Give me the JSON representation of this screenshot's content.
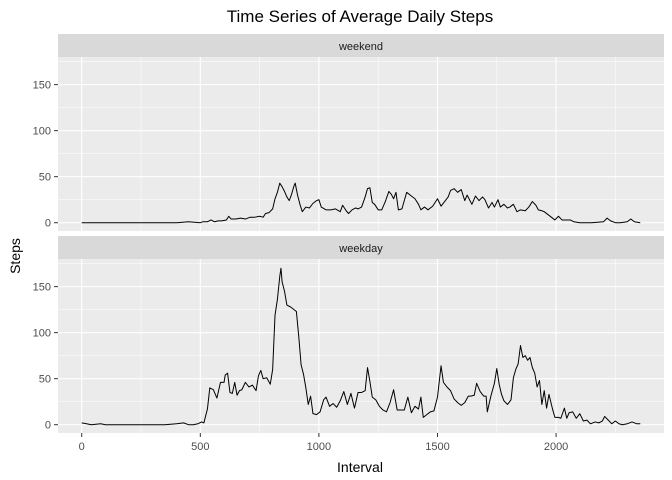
{
  "chart_data": {
    "type": "line",
    "title": "Time Series of Average Daily Steps",
    "xlabel": "Interval",
    "ylabel": "Steps",
    "xlim": [
      -100,
      2455
    ],
    "ylim": [
      -9,
      180
    ],
    "x_ticks": [
      0,
      500,
      1000,
      1500,
      2000
    ],
    "y_ticks": [
      0,
      50,
      100,
      150
    ],
    "x_tick_labels": [
      "0",
      "500",
      "1000",
      "1500",
      "2000"
    ],
    "y_tick_labels": [
      "0",
      "50",
      "100",
      "150"
    ],
    "line_color": "#000000",
    "panels": [
      {
        "name": "weekend",
        "series": [
          [
            0,
            0
          ],
          [
            100,
            0
          ],
          [
            200,
            0
          ],
          [
            300,
            0
          ],
          [
            400,
            0
          ],
          [
            450,
            1
          ],
          [
            500,
            0
          ],
          [
            510,
            1
          ],
          [
            530,
            1
          ],
          [
            545,
            3
          ],
          [
            560,
            1
          ],
          [
            575,
            2
          ],
          [
            590,
            2
          ],
          [
            610,
            3
          ],
          [
            620,
            7
          ],
          [
            630,
            4
          ],
          [
            650,
            4
          ],
          [
            670,
            5
          ],
          [
            690,
            4
          ],
          [
            710,
            6
          ],
          [
            730,
            6
          ],
          [
            750,
            7
          ],
          [
            765,
            6
          ],
          [
            775,
            10
          ],
          [
            790,
            11
          ],
          [
            805,
            15
          ],
          [
            815,
            26
          ],
          [
            825,
            33
          ],
          [
            835,
            43
          ],
          [
            845,
            39
          ],
          [
            855,
            34
          ],
          [
            865,
            28
          ],
          [
            875,
            24
          ],
          [
            885,
            31
          ],
          [
            895,
            40
          ],
          [
            900,
            43
          ],
          [
            910,
            30
          ],
          [
            920,
            20
          ],
          [
            930,
            12
          ],
          [
            945,
            17
          ],
          [
            960,
            16
          ],
          [
            975,
            21
          ],
          [
            990,
            24
          ],
          [
            1000,
            25
          ],
          [
            1010,
            17
          ],
          [
            1030,
            14
          ],
          [
            1050,
            14
          ],
          [
            1070,
            15
          ],
          [
            1090,
            12
          ],
          [
            1100,
            19
          ],
          [
            1115,
            13
          ],
          [
            1125,
            10
          ],
          [
            1140,
            14
          ],
          [
            1155,
            16
          ],
          [
            1165,
            15
          ],
          [
            1180,
            17
          ],
          [
            1195,
            28
          ],
          [
            1205,
            37
          ],
          [
            1215,
            38
          ],
          [
            1225,
            22
          ],
          [
            1235,
            20
          ],
          [
            1250,
            14
          ],
          [
            1265,
            14
          ],
          [
            1280,
            23
          ],
          [
            1295,
            34
          ],
          [
            1305,
            31
          ],
          [
            1315,
            26
          ],
          [
            1325,
            33
          ],
          [
            1335,
            14
          ],
          [
            1350,
            15
          ],
          [
            1370,
            33
          ],
          [
            1385,
            30
          ],
          [
            1405,
            26
          ],
          [
            1420,
            20
          ],
          [
            1430,
            14
          ],
          [
            1445,
            17
          ],
          [
            1460,
            14
          ],
          [
            1480,
            18
          ],
          [
            1500,
            26
          ],
          [
            1515,
            18
          ],
          [
            1530,
            23
          ],
          [
            1545,
            28
          ],
          [
            1555,
            35
          ],
          [
            1570,
            37
          ],
          [
            1585,
            33
          ],
          [
            1600,
            36
          ],
          [
            1615,
            24
          ],
          [
            1625,
            30
          ],
          [
            1645,
            20
          ],
          [
            1660,
            29
          ],
          [
            1675,
            24
          ],
          [
            1690,
            28
          ],
          [
            1700,
            25
          ],
          [
            1715,
            16
          ],
          [
            1730,
            22
          ],
          [
            1740,
            17
          ],
          [
            1755,
            25
          ],
          [
            1765,
            17
          ],
          [
            1780,
            20
          ],
          [
            1795,
            16
          ],
          [
            1805,
            17
          ],
          [
            1820,
            20
          ],
          [
            1835,
            12
          ],
          [
            1850,
            14
          ],
          [
            1870,
            13
          ],
          [
            1885,
            17
          ],
          [
            1900,
            23
          ],
          [
            1915,
            19
          ],
          [
            1925,
            14
          ],
          [
            1940,
            13
          ],
          [
            1950,
            12
          ],
          [
            1965,
            9
          ],
          [
            1980,
            6
          ],
          [
            1995,
            3
          ],
          [
            2010,
            7
          ],
          [
            2025,
            3
          ],
          [
            2045,
            3
          ],
          [
            2060,
            3
          ],
          [
            2075,
            1
          ],
          [
            2100,
            0
          ],
          [
            2150,
            0
          ],
          [
            2200,
            1
          ],
          [
            2215,
            5
          ],
          [
            2230,
            2
          ],
          [
            2250,
            0
          ],
          [
            2270,
            0
          ],
          [
            2300,
            1
          ],
          [
            2315,
            4
          ],
          [
            2330,
            1
          ],
          [
            2355,
            0
          ]
        ]
      },
      {
        "name": "weekday",
        "series": [
          [
            0,
            2
          ],
          [
            20,
            1
          ],
          [
            40,
            0
          ],
          [
            80,
            1
          ],
          [
            100,
            0
          ],
          [
            150,
            0
          ],
          [
            200,
            0
          ],
          [
            250,
            0
          ],
          [
            300,
            0
          ],
          [
            350,
            0
          ],
          [
            400,
            1
          ],
          [
            430,
            2
          ],
          [
            450,
            0
          ],
          [
            470,
            0
          ],
          [
            490,
            1
          ],
          [
            505,
            3
          ],
          [
            515,
            2
          ],
          [
            530,
            17
          ],
          [
            540,
            40
          ],
          [
            555,
            38
          ],
          [
            570,
            29
          ],
          [
            585,
            46
          ],
          [
            600,
            46
          ],
          [
            605,
            54
          ],
          [
            615,
            56
          ],
          [
            625,
            35
          ],
          [
            635,
            34
          ],
          [
            645,
            46
          ],
          [
            655,
            32
          ],
          [
            665,
            37
          ],
          [
            675,
            38
          ],
          [
            690,
            46
          ],
          [
            705,
            41
          ],
          [
            720,
            43
          ],
          [
            735,
            37
          ],
          [
            745,
            53
          ],
          [
            755,
            59
          ],
          [
            765,
            50
          ],
          [
            780,
            51
          ],
          [
            795,
            44
          ],
          [
            805,
            60
          ],
          [
            815,
            119
          ],
          [
            825,
            136
          ],
          [
            835,
            161
          ],
          [
            840,
            170
          ],
          [
            845,
            155
          ],
          [
            855,
            145
          ],
          [
            865,
            130
          ],
          [
            880,
            128
          ],
          [
            895,
            125
          ],
          [
            905,
            123
          ],
          [
            915,
            96
          ],
          [
            925,
            65
          ],
          [
            935,
            55
          ],
          [
            945,
            40
          ],
          [
            955,
            22
          ],
          [
            965,
            31
          ],
          [
            975,
            12
          ],
          [
            990,
            11
          ],
          [
            1005,
            14
          ],
          [
            1020,
            27
          ],
          [
            1030,
            30
          ],
          [
            1045,
            20
          ],
          [
            1060,
            23
          ],
          [
            1075,
            19
          ],
          [
            1090,
            26
          ],
          [
            1105,
            36
          ],
          [
            1120,
            22
          ],
          [
            1135,
            34
          ],
          [
            1150,
            18
          ],
          [
            1165,
            35
          ],
          [
            1180,
            35
          ],
          [
            1195,
            37
          ],
          [
            1205,
            62
          ],
          [
            1215,
            47
          ],
          [
            1225,
            30
          ],
          [
            1240,
            27
          ],
          [
            1255,
            20
          ],
          [
            1270,
            16
          ],
          [
            1285,
            14
          ],
          [
            1300,
            24
          ],
          [
            1315,
            38
          ],
          [
            1330,
            16
          ],
          [
            1345,
            16
          ],
          [
            1360,
            16
          ],
          [
            1375,
            30
          ],
          [
            1390,
            13
          ],
          [
            1405,
            20
          ],
          [
            1420,
            17
          ],
          [
            1430,
            30
          ],
          [
            1440,
            8
          ],
          [
            1455,
            11
          ],
          [
            1470,
            14
          ],
          [
            1485,
            15
          ],
          [
            1500,
            30
          ],
          [
            1515,
            64
          ],
          [
            1525,
            46
          ],
          [
            1540,
            41
          ],
          [
            1555,
            37
          ],
          [
            1570,
            28
          ],
          [
            1585,
            24
          ],
          [
            1600,
            21
          ],
          [
            1615,
            24
          ],
          [
            1630,
            31
          ],
          [
            1640,
            31
          ],
          [
            1655,
            32
          ],
          [
            1665,
            45
          ],
          [
            1680,
            36
          ],
          [
            1695,
            31
          ],
          [
            1705,
            31
          ],
          [
            1710,
            14
          ],
          [
            1725,
            31
          ],
          [
            1740,
            45
          ],
          [
            1750,
            61
          ],
          [
            1760,
            44
          ],
          [
            1770,
            33
          ],
          [
            1780,
            26
          ],
          [
            1795,
            22
          ],
          [
            1810,
            27
          ],
          [
            1820,
            51
          ],
          [
            1830,
            60
          ],
          [
            1840,
            66
          ],
          [
            1850,
            86
          ],
          [
            1860,
            73
          ],
          [
            1870,
            75
          ],
          [
            1880,
            70
          ],
          [
            1890,
            73
          ],
          [
            1900,
            62
          ],
          [
            1910,
            56
          ],
          [
            1920,
            41
          ],
          [
            1930,
            48
          ],
          [
            1940,
            22
          ],
          [
            1950,
            37
          ],
          [
            1960,
            18
          ],
          [
            1970,
            33
          ],
          [
            1985,
            17
          ],
          [
            1995,
            8
          ],
          [
            2010,
            8
          ],
          [
            2020,
            7
          ],
          [
            2035,
            18
          ],
          [
            2045,
            7
          ],
          [
            2055,
            13
          ],
          [
            2070,
            14
          ],
          [
            2085,
            7
          ],
          [
            2100,
            12
          ],
          [
            2115,
            4
          ],
          [
            2130,
            5
          ],
          [
            2145,
            1
          ],
          [
            2165,
            3
          ],
          [
            2180,
            2
          ],
          [
            2195,
            4
          ],
          [
            2205,
            9
          ],
          [
            2220,
            5
          ],
          [
            2235,
            1
          ],
          [
            2250,
            4
          ],
          [
            2265,
            1
          ],
          [
            2280,
            0
          ],
          [
            2300,
            1
          ],
          [
            2320,
            3
          ],
          [
            2340,
            1
          ],
          [
            2355,
            1
          ]
        ]
      }
    ]
  },
  "colors": {
    "panel_bg": "#ebebeb",
    "strip_bg": "#d9d9d9",
    "grid_major": "#ffffff",
    "tick": "#333333"
  }
}
